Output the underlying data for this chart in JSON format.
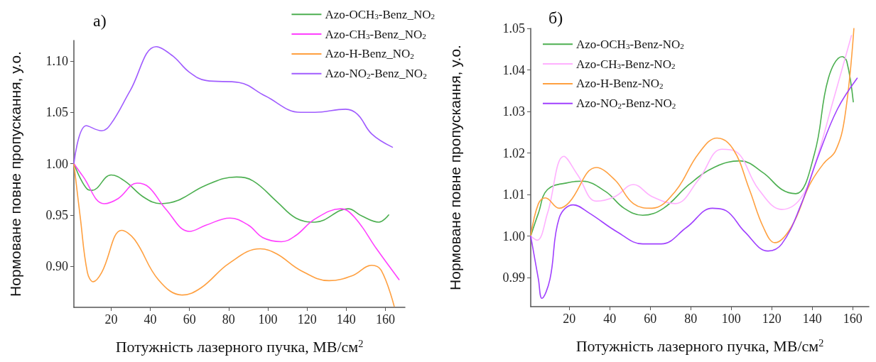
{
  "chart_data": [
    {
      "type": "line",
      "title": "а)",
      "xlabel": "Потужність лазерного пучка, МВ/см$^{2}$",
      "ylabel": "Нормоване повне пропускання, у.о.",
      "xlim": [
        1,
        170
      ],
      "ylim": [
        0.86,
        1.12
      ],
      "xticks": [
        20,
        40,
        60,
        80,
        100,
        120,
        140,
        160
      ],
      "yticks": [
        {
          "value": 0.9,
          "label": "0.90"
        },
        {
          "value": 0.95,
          "label": "0.95"
        },
        {
          "value": 1.0,
          "label": "1.00"
        },
        {
          "value": 1.05,
          "label": "1.05"
        },
        {
          "value": 1.1,
          "label": "1.10"
        }
      ],
      "legend": "top right",
      "grid": false,
      "series": [
        {
          "name": "Azo-OCH$_{3}$-Benz_NO$_{2}$",
          "color": "#4caf50",
          "x": [
            1,
            7.9,
            10.3,
            20,
            27,
            36.9,
            45.4,
            53.9,
            68.4,
            84,
            92.6,
            104.6,
            114.3,
            124,
            141,
            148,
            156.6,
            161.7
          ],
          "values": [
            1.0,
            0.975,
            0.974,
            0.989,
            0.983,
            0.967,
            0.961,
            0.964,
            0.979,
            0.987,
            0.983,
            0.963,
            0.947,
            0.943,
            0.956,
            0.949,
            0.943,
            0.95
          ]
        },
        {
          "name": "Azo-CH$_{3}$-Benz_NO$_{2}$",
          "color": "#ff40ff",
          "x": [
            1,
            5.5,
            16.4,
            23.6,
            33.3,
            39.3,
            47.8,
            60,
            68.4,
            80.6,
            90.1,
            97.4,
            107,
            114.3,
            124,
            137.3,
            144.6,
            155.5,
            167
          ],
          "values": [
            1.0,
            0.988,
            0.961,
            0.966,
            0.981,
            0.977,
            0.956,
            0.934,
            0.94,
            0.947,
            0.94,
            0.928,
            0.924,
            0.93,
            0.946,
            0.956,
            0.947,
            0.917,
            0.887
          ]
        },
        {
          "name": "Azo-H-Benz_NO$_{2}$",
          "color": "#ffa040",
          "x": [
            1,
            4.3,
            7.9,
            10.9,
            15.2,
            25.4,
            32,
            44.1,
            56.3,
            65.9,
            80.3,
            96.1,
            104.6,
            116.7,
            131.3,
            143.3,
            153,
            157.9,
            164.5
          ],
          "values": [
            1.0,
            0.947,
            0.894,
            0.885,
            0.894,
            0.935,
            0.926,
            0.887,
            0.872,
            0.879,
            0.903,
            0.917,
            0.912,
            0.896,
            0.886,
            0.891,
            0.901,
            0.896,
            0.861
          ]
        },
        {
          "name": "Azo-NO$_{2}$-Benz_NO$_{2}$",
          "color": "#a05cff",
          "x": [
            1,
            7.3,
            15.2,
            20,
            29.7,
            43,
            51.4,
            60,
            68.4,
            85.3,
            98.6,
            116.7,
            124,
            139.7,
            145.8,
            153,
            163.6
          ],
          "values": [
            1.0,
            1.037,
            1.032,
            1.039,
            1.071,
            1.114,
            1.105,
            1.089,
            1.081,
            1.079,
            1.066,
            1.05,
            1.05,
            1.053,
            1.048,
            1.029,
            1.016
          ]
        }
      ]
    },
    {
      "type": "line",
      "title": "б)",
      "xlabel": "Потужність лазерного пучка, МВ/см$^{2}$",
      "ylabel": "Нормоване повне пропускання, у.о.",
      "xlim": [
        1,
        168
      ],
      "ylim": [
        0.983,
        1.05
      ],
      "xticks": [
        20,
        40,
        60,
        80,
        100,
        120,
        140,
        160
      ],
      "yticks": [
        0.99,
        {
          "value": 1.0,
          "label": "1.00"
        },
        1.01,
        1.02,
        1.03,
        1.04,
        1.05
      ],
      "legend": "top left",
      "grid": false,
      "series": [
        {
          "name": "Azo-OCH$_{3}$-Benz-NO$_{2}$",
          "color": "#4caf50",
          "x": [
            1,
            4.8,
            9.3,
            20,
            26.5,
            38,
            47.1,
            56.3,
            66.6,
            79.2,
            91.8,
            104.4,
            115.9,
            125,
            131.9,
            141.1,
            148,
            154.8,
            157.1,
            160.3
          ],
          "values": [
            1.0,
            1.0055,
            1.0112,
            1.0129,
            1.0132,
            1.0107,
            1.0067,
            1.005,
            1.0067,
            1.0124,
            1.0166,
            1.0181,
            1.0152,
            1.0112,
            1.0102,
            1.0198,
            1.038,
            1.0432,
            1.042,
            1.0323
          ]
        },
        {
          "name": "Azo-CH$_{3}$-Benz-NO$_{2}$",
          "color": "#ffb0ff",
          "x": [
            1,
            4.2,
            9.3,
            17.4,
            24.2,
            33.4,
            42.6,
            51.7,
            60.9,
            72.3,
            83.8,
            95.3,
            102.1,
            113.6,
            125,
            134.2,
            141.1,
            150.2,
            159.4
          ],
          "values": [
            1.0,
            0.999,
            1.0055,
            1.0192,
            1.0147,
            1.0084,
            1.0095,
            1.0124,
            1.0095,
            1.0078,
            1.0135,
            1.0209,
            1.0204,
            1.0112,
            1.0064,
            1.009,
            1.0169,
            1.0323,
            1.0483
          ]
        },
        {
          "name": "Azo-H-Benz-NO$_{2}$",
          "color": "#ffa040",
          "x": [
            1,
            4.8,
            8.2,
            15.1,
            20,
            33.4,
            42.6,
            51.7,
            60.9,
            72.3,
            83.8,
            93,
            101,
            109,
            115.9,
            121.6,
            129.6,
            138.8,
            145.7,
            151.4,
            156,
            160.6
          ],
          "values": [
            1.0,
            1.0078,
            1.0092,
            1.0067,
            1.0081,
            1.0165,
            1.0135,
            1.0078,
            1.0067,
            1.0107,
            1.0198,
            1.0236,
            1.0209,
            1.0112,
            1.0021,
            0.9984,
            1.0021,
            1.0124,
            1.0175,
            1.0204,
            1.0283,
            1.05
          ]
        },
        {
          "name": "Azo-NO$_{2}$-Benz-NO$_{2}$",
          "color": "#a040ff",
          "x": [
            1,
            4.8,
            6.5,
            10.5,
            15.1,
            22,
            30,
            43.7,
            56.3,
            65.5,
            78,
            90.7,
            97.5,
            106.7,
            118.2,
            125,
            134.2,
            143.4,
            152.5,
            162.2
          ],
          "values": [
            1.0,
            0.9896,
            0.985,
            0.9896,
            1.0044,
            1.0075,
            1.0055,
            1.001,
            0.9981,
            0.9981,
            1.0021,
            1.0067,
            1.0061,
            1.001,
            0.9964,
            0.9981,
            1.0072,
            1.0198,
            1.0306,
            1.038
          ]
        }
      ]
    }
  ]
}
